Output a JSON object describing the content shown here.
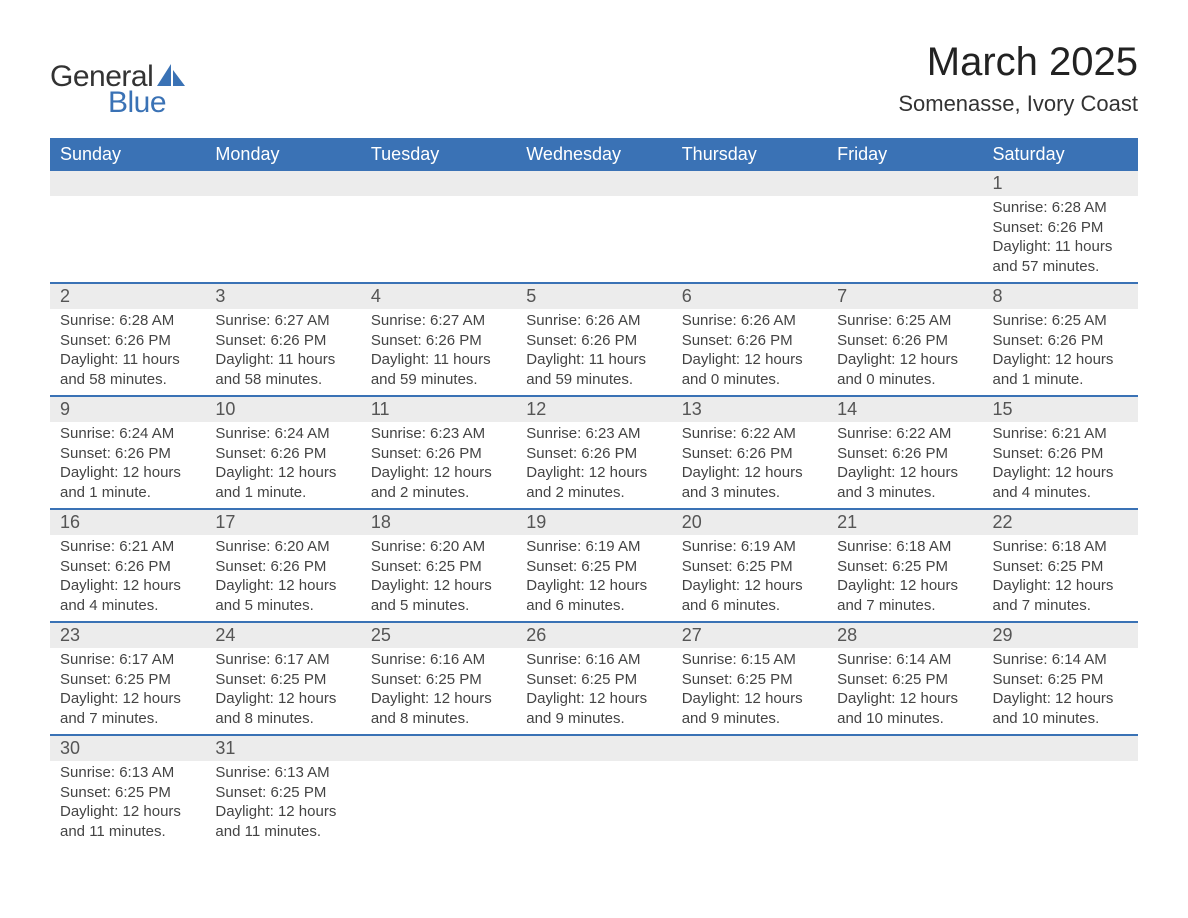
{
  "logo": {
    "text1": "General",
    "text2": "Blue",
    "accent_color": "#3a72b5"
  },
  "title": "March 2025",
  "location": "Somenasse, Ivory Coast",
  "colors": {
    "header_bg": "#3a72b5",
    "header_text": "#ffffff",
    "daynum_bg": "#ececec",
    "row_border": "#3a72b5",
    "body_text": "#444444",
    "page_bg": "#ffffff"
  },
  "typography": {
    "title_fontsize": 40,
    "location_fontsize": 22,
    "header_fontsize": 18,
    "daynum_fontsize": 18,
    "body_fontsize": 15
  },
  "day_headers": [
    "Sunday",
    "Monday",
    "Tuesday",
    "Wednesday",
    "Thursday",
    "Friday",
    "Saturday"
  ],
  "weeks": [
    [
      null,
      null,
      null,
      null,
      null,
      null,
      {
        "n": "1",
        "sunrise": "Sunrise: 6:28 AM",
        "sunset": "Sunset: 6:26 PM",
        "daylight": "Daylight: 11 hours and 57 minutes."
      }
    ],
    [
      {
        "n": "2",
        "sunrise": "Sunrise: 6:28 AM",
        "sunset": "Sunset: 6:26 PM",
        "daylight": "Daylight: 11 hours and 58 minutes."
      },
      {
        "n": "3",
        "sunrise": "Sunrise: 6:27 AM",
        "sunset": "Sunset: 6:26 PM",
        "daylight": "Daylight: 11 hours and 58 minutes."
      },
      {
        "n": "4",
        "sunrise": "Sunrise: 6:27 AM",
        "sunset": "Sunset: 6:26 PM",
        "daylight": "Daylight: 11 hours and 59 minutes."
      },
      {
        "n": "5",
        "sunrise": "Sunrise: 6:26 AM",
        "sunset": "Sunset: 6:26 PM",
        "daylight": "Daylight: 11 hours and 59 minutes."
      },
      {
        "n": "6",
        "sunrise": "Sunrise: 6:26 AM",
        "sunset": "Sunset: 6:26 PM",
        "daylight": "Daylight: 12 hours and 0 minutes."
      },
      {
        "n": "7",
        "sunrise": "Sunrise: 6:25 AM",
        "sunset": "Sunset: 6:26 PM",
        "daylight": "Daylight: 12 hours and 0 minutes."
      },
      {
        "n": "8",
        "sunrise": "Sunrise: 6:25 AM",
        "sunset": "Sunset: 6:26 PM",
        "daylight": "Daylight: 12 hours and 1 minute."
      }
    ],
    [
      {
        "n": "9",
        "sunrise": "Sunrise: 6:24 AM",
        "sunset": "Sunset: 6:26 PM",
        "daylight": "Daylight: 12 hours and 1 minute."
      },
      {
        "n": "10",
        "sunrise": "Sunrise: 6:24 AM",
        "sunset": "Sunset: 6:26 PM",
        "daylight": "Daylight: 12 hours and 1 minute."
      },
      {
        "n": "11",
        "sunrise": "Sunrise: 6:23 AM",
        "sunset": "Sunset: 6:26 PM",
        "daylight": "Daylight: 12 hours and 2 minutes."
      },
      {
        "n": "12",
        "sunrise": "Sunrise: 6:23 AM",
        "sunset": "Sunset: 6:26 PM",
        "daylight": "Daylight: 12 hours and 2 minutes."
      },
      {
        "n": "13",
        "sunrise": "Sunrise: 6:22 AM",
        "sunset": "Sunset: 6:26 PM",
        "daylight": "Daylight: 12 hours and 3 minutes."
      },
      {
        "n": "14",
        "sunrise": "Sunrise: 6:22 AM",
        "sunset": "Sunset: 6:26 PM",
        "daylight": "Daylight: 12 hours and 3 minutes."
      },
      {
        "n": "15",
        "sunrise": "Sunrise: 6:21 AM",
        "sunset": "Sunset: 6:26 PM",
        "daylight": "Daylight: 12 hours and 4 minutes."
      }
    ],
    [
      {
        "n": "16",
        "sunrise": "Sunrise: 6:21 AM",
        "sunset": "Sunset: 6:26 PM",
        "daylight": "Daylight: 12 hours and 4 minutes."
      },
      {
        "n": "17",
        "sunrise": "Sunrise: 6:20 AM",
        "sunset": "Sunset: 6:26 PM",
        "daylight": "Daylight: 12 hours and 5 minutes."
      },
      {
        "n": "18",
        "sunrise": "Sunrise: 6:20 AM",
        "sunset": "Sunset: 6:25 PM",
        "daylight": "Daylight: 12 hours and 5 minutes."
      },
      {
        "n": "19",
        "sunrise": "Sunrise: 6:19 AM",
        "sunset": "Sunset: 6:25 PM",
        "daylight": "Daylight: 12 hours and 6 minutes."
      },
      {
        "n": "20",
        "sunrise": "Sunrise: 6:19 AM",
        "sunset": "Sunset: 6:25 PM",
        "daylight": "Daylight: 12 hours and 6 minutes."
      },
      {
        "n": "21",
        "sunrise": "Sunrise: 6:18 AM",
        "sunset": "Sunset: 6:25 PM",
        "daylight": "Daylight: 12 hours and 7 minutes."
      },
      {
        "n": "22",
        "sunrise": "Sunrise: 6:18 AM",
        "sunset": "Sunset: 6:25 PM",
        "daylight": "Daylight: 12 hours and 7 minutes."
      }
    ],
    [
      {
        "n": "23",
        "sunrise": "Sunrise: 6:17 AM",
        "sunset": "Sunset: 6:25 PM",
        "daylight": "Daylight: 12 hours and 7 minutes."
      },
      {
        "n": "24",
        "sunrise": "Sunrise: 6:17 AM",
        "sunset": "Sunset: 6:25 PM",
        "daylight": "Daylight: 12 hours and 8 minutes."
      },
      {
        "n": "25",
        "sunrise": "Sunrise: 6:16 AM",
        "sunset": "Sunset: 6:25 PM",
        "daylight": "Daylight: 12 hours and 8 minutes."
      },
      {
        "n": "26",
        "sunrise": "Sunrise: 6:16 AM",
        "sunset": "Sunset: 6:25 PM",
        "daylight": "Daylight: 12 hours and 9 minutes."
      },
      {
        "n": "27",
        "sunrise": "Sunrise: 6:15 AM",
        "sunset": "Sunset: 6:25 PM",
        "daylight": "Daylight: 12 hours and 9 minutes."
      },
      {
        "n": "28",
        "sunrise": "Sunrise: 6:14 AM",
        "sunset": "Sunset: 6:25 PM",
        "daylight": "Daylight: 12 hours and 10 minutes."
      },
      {
        "n": "29",
        "sunrise": "Sunrise: 6:14 AM",
        "sunset": "Sunset: 6:25 PM",
        "daylight": "Daylight: 12 hours and 10 minutes."
      }
    ],
    [
      {
        "n": "30",
        "sunrise": "Sunrise: 6:13 AM",
        "sunset": "Sunset: 6:25 PM",
        "daylight": "Daylight: 12 hours and 11 minutes."
      },
      {
        "n": "31",
        "sunrise": "Sunrise: 6:13 AM",
        "sunset": "Sunset: 6:25 PM",
        "daylight": "Daylight: 12 hours and 11 minutes."
      },
      null,
      null,
      null,
      null,
      null
    ]
  ]
}
